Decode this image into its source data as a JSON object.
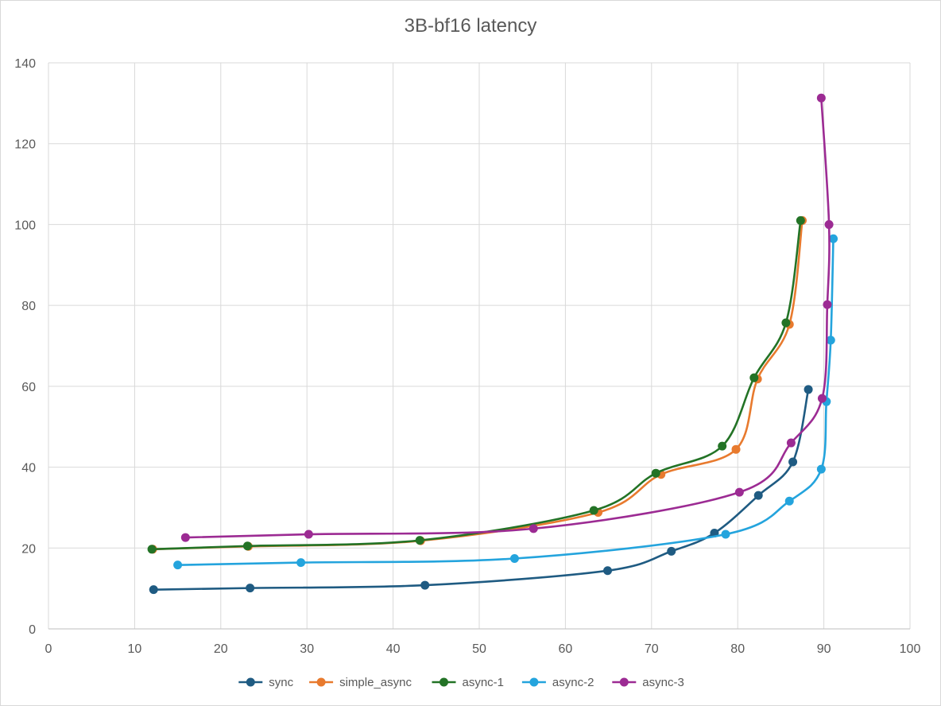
{
  "chart_data": {
    "type": "scatter",
    "title": "3B-bf16 latency",
    "xlabel": "",
    "ylabel": "",
    "xlim": [
      0,
      100
    ],
    "ylim": [
      0,
      140
    ],
    "x_ticks": [
      0,
      10,
      20,
      30,
      40,
      50,
      60,
      70,
      80,
      90,
      100
    ],
    "y_ticks": [
      0,
      20,
      40,
      60,
      80,
      100,
      120,
      140
    ],
    "grid": true,
    "legend_position": "bottom",
    "smooth_lines": true,
    "series": [
      {
        "name": "sync",
        "color": "#1f5b82",
        "points": [
          [
            12.2,
            9.7
          ],
          [
            23.4,
            10.1
          ],
          [
            43.7,
            10.8
          ],
          [
            64.9,
            14.4
          ],
          [
            72.3,
            19.2
          ],
          [
            77.3,
            23.7
          ],
          [
            82.4,
            33.0
          ],
          [
            86.4,
            41.3
          ],
          [
            88.2,
            59.2
          ]
        ]
      },
      {
        "name": "simple_async",
        "color": "#e87a2e",
        "points": [
          [
            12.1,
            19.7
          ],
          [
            23.2,
            20.4
          ],
          [
            43.2,
            21.8
          ],
          [
            63.8,
            28.8
          ],
          [
            71.1,
            38.2
          ],
          [
            79.8,
            44.4
          ],
          [
            82.3,
            61.8
          ],
          [
            86.0,
            75.3
          ],
          [
            87.5,
            101.0
          ]
        ]
      },
      {
        "name": "async-1",
        "color": "#237326",
        "points": [
          [
            12.0,
            19.7
          ],
          [
            23.1,
            20.5
          ],
          [
            43.1,
            21.9
          ],
          [
            63.3,
            29.3
          ],
          [
            70.5,
            38.5
          ],
          [
            78.2,
            45.2
          ],
          [
            81.9,
            62.1
          ],
          [
            85.6,
            75.7
          ],
          [
            87.3,
            101.0
          ]
        ]
      },
      {
        "name": "async-2",
        "color": "#24a4dd",
        "points": [
          [
            15.0,
            15.8
          ],
          [
            29.3,
            16.4
          ],
          [
            54.1,
            17.4
          ],
          [
            78.6,
            23.4
          ],
          [
            86.0,
            31.6
          ],
          [
            89.7,
            39.5
          ],
          [
            90.3,
            56.2
          ],
          [
            90.8,
            71.4
          ],
          [
            91.1,
            96.5
          ]
        ]
      },
      {
        "name": "async-3",
        "color": "#9c2b93",
        "points": [
          [
            15.9,
            22.6
          ],
          [
            30.2,
            23.4
          ],
          [
            56.3,
            24.8
          ],
          [
            80.2,
            33.8
          ],
          [
            86.2,
            46.0
          ],
          [
            89.8,
            57.0
          ],
          [
            90.4,
            80.2
          ],
          [
            90.6,
            100.0
          ],
          [
            89.7,
            131.3
          ]
        ]
      }
    ]
  }
}
